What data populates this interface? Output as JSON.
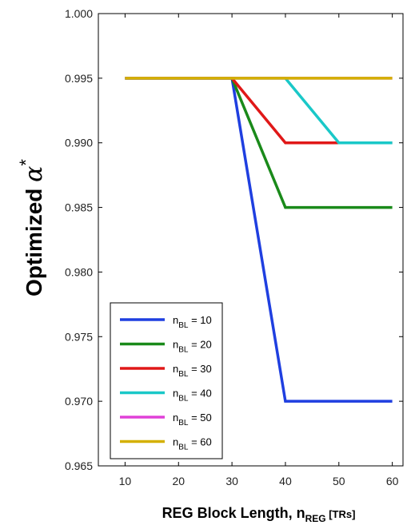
{
  "chart_data": {
    "type": "line",
    "xlabel": {
      "main": "REG Block Length, n",
      "sub": "REG",
      "suffix": " [TRs]"
    },
    "ylabel": {
      "main": "Optimized ",
      "symbol": "α",
      "sup": "*"
    },
    "xlim": [
      5,
      62
    ],
    "ylim": [
      0.965,
      1.0
    ],
    "xticks": [
      10,
      20,
      30,
      40,
      50,
      60
    ],
    "xtick_labels": [
      "10",
      "20",
      "30",
      "40",
      "50",
      "60"
    ],
    "yticks": [
      0.965,
      0.97,
      0.975,
      0.98,
      0.985,
      0.99,
      0.995,
      1.0
    ],
    "ytick_labels": [
      "0.965",
      "0.970",
      "0.975",
      "0.980",
      "0.985",
      "0.990",
      "0.995",
      "1.000"
    ],
    "grid": false,
    "legend_position": "bottom-left",
    "x": [
      10,
      20,
      30,
      40,
      50,
      60
    ],
    "series": [
      {
        "label": {
          "base": "n",
          "sub": "BL",
          "rest": " = 10"
        },
        "color": "#1f3fe0",
        "values": [
          0.995,
          0.995,
          0.995,
          0.97,
          0.97,
          0.97
        ]
      },
      {
        "label": {
          "base": "n",
          "sub": "BL",
          "rest": " = 20"
        },
        "color": "#1a8a1a",
        "values": [
          0.995,
          0.995,
          0.995,
          0.985,
          0.985,
          0.985
        ]
      },
      {
        "label": {
          "base": "n",
          "sub": "BL",
          "rest": " = 30"
        },
        "color": "#e01818",
        "values": [
          0.995,
          0.995,
          0.995,
          0.99,
          0.99,
          0.99
        ]
      },
      {
        "label": {
          "base": "n",
          "sub": "BL",
          "rest": " = 40"
        },
        "color": "#1ac8c8",
        "values": [
          0.995,
          0.995,
          0.995,
          0.995,
          0.99,
          0.99
        ]
      },
      {
        "label": {
          "base": "n",
          "sub": "BL",
          "rest": " = 50"
        },
        "color": "#e040d8",
        "values": [
          0.995,
          0.995,
          0.995,
          0.995,
          0.995,
          0.995
        ]
      },
      {
        "label": {
          "base": "n",
          "sub": "BL",
          "rest": " = 60"
        },
        "color": "#d4b000",
        "values": [
          0.995,
          0.995,
          0.995,
          0.995,
          0.995,
          0.995
        ]
      }
    ]
  }
}
